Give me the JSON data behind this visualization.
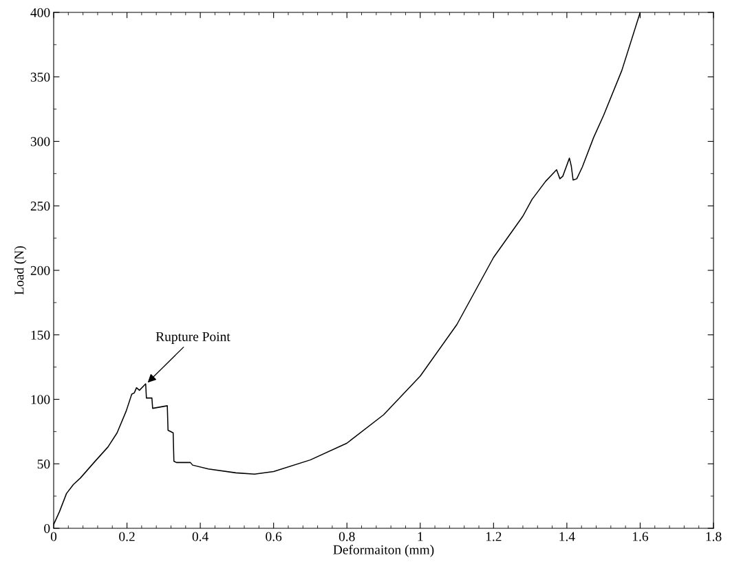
{
  "chart_data": {
    "type": "line",
    "xlabel": "Deformaiton (mm)",
    "ylabel": "Load (N)",
    "xlim": [
      0,
      1.8
    ],
    "ylim": [
      0,
      400
    ],
    "xticks": [
      0,
      0.2,
      0.4,
      0.6,
      0.8,
      1,
      1.2,
      1.4,
      1.6,
      1.8
    ],
    "yticks": [
      0,
      50,
      100,
      150,
      200,
      250,
      300,
      350,
      400
    ],
    "grid": false,
    "marker": "none",
    "line_style": "solid",
    "annotations": [
      {
        "text": "Rupture Point",
        "x": 0.253,
        "y": 112
      }
    ],
    "series": [
      {
        "color": "#000000",
        "x": [
          0,
          0.016,
          0.035,
          0.054,
          0.073,
          0.11,
          0.148,
          0.173,
          0.198,
          0.213,
          0.22,
          0.226,
          0.234,
          0.251,
          0.253,
          0.268,
          0.27,
          0.31,
          0.312,
          0.326,
          0.328,
          0.335,
          0.373,
          0.379,
          0.422,
          0.497,
          0.548,
          0.6,
          0.7,
          0.8,
          0.9,
          1.0,
          1.1,
          1.2,
          1.28,
          1.305,
          1.342,
          1.372,
          1.381,
          1.389,
          1.407,
          1.412,
          1.417,
          1.427,
          1.442,
          1.473,
          1.5,
          1.55,
          1.6
        ],
        "values": [
          3,
          13,
          27,
          34,
          39,
          51,
          63,
          74,
          91,
          104,
          105,
          109,
          107,
          112,
          101,
          101,
          93,
          95,
          76,
          74,
          52,
          51,
          51,
          49,
          46,
          43,
          42,
          44,
          53,
          66,
          88,
          118,
          158,
          210,
          242,
          255,
          269,
          278,
          271,
          273,
          287,
          281,
          270,
          271,
          280,
          303,
          320,
          355,
          400
        ]
      }
    ]
  }
}
